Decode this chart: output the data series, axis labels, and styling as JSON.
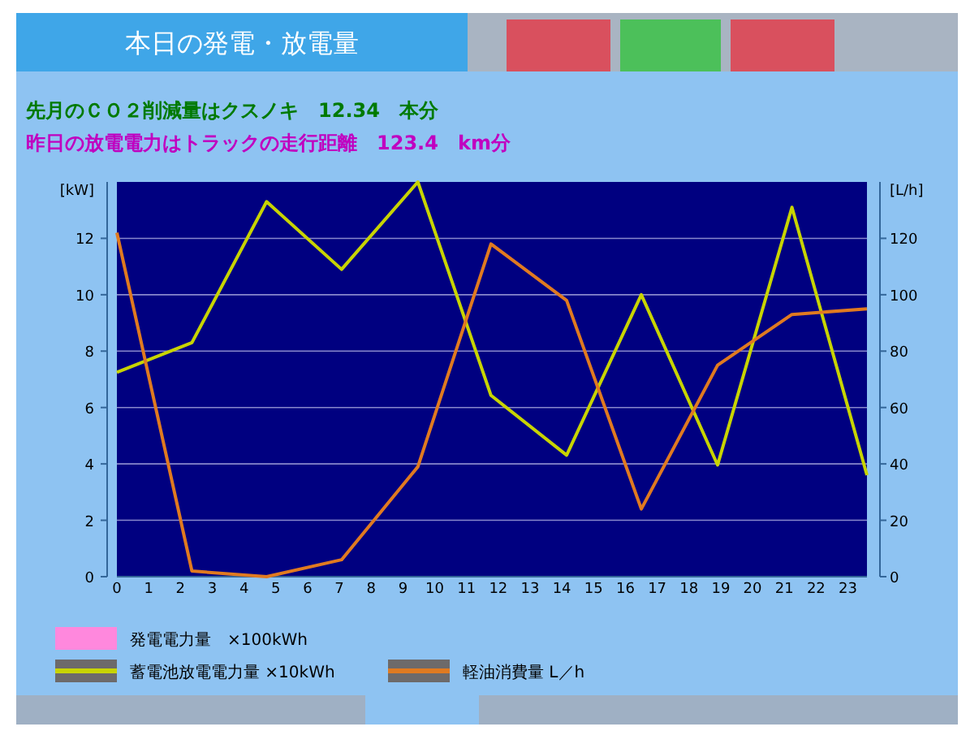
{
  "chart_data": {
    "type": "line",
    "title": "本日の発電・放電量",
    "ylabel": "[kW]",
    "y2label": "[L/h]",
    "annotations": [
      "先月のＣＯ２削減量はクスノキ　12.34　本分",
      "昨日の放電電力はトラックの走行距離　123.4　km分"
    ],
    "x": [
      0,
      2.36,
      4.71,
      7.07,
      9.47,
      11.77,
      14.15,
      16.5,
      18.9,
      21.24,
      23.6
    ],
    "xlim": [
      0,
      23.6
    ],
    "xticks": [
      0,
      1,
      2,
      3,
      4,
      5,
      6,
      7,
      8,
      9,
      10,
      11,
      12,
      13,
      14,
      15,
      16,
      17,
      18,
      19,
      20,
      21,
      22,
      23
    ],
    "ylim": [
      0,
      14
    ],
    "yticks": [
      0,
      2,
      4,
      6,
      8,
      10,
      12
    ],
    "y2lim": [
      0,
      140
    ],
    "y2ticks": [
      0,
      20,
      40,
      60,
      80,
      100,
      120
    ],
    "grid": "y",
    "legend": "bottom left",
    "marker": "none",
    "line_style": "solid",
    "series": [
      {
        "name": "発電電力量　×100kWh",
        "color": "#ff88dd",
        "values": [
          null,
          null,
          null,
          null,
          null,
          null,
          null,
          null,
          null,
          null,
          null
        ]
      },
      {
        "name": "蓄電池放電電力量 ×10kWh",
        "color": "#c8d400",
        "values": [
          7.25,
          8.3,
          13.3,
          10.9,
          14.0,
          6.43,
          4.31,
          10.0,
          3.96,
          13.1,
          3.6
        ]
      },
      {
        "name": "軽油消費量 L／h",
        "color": "#e07a20",
        "axis": "y2",
        "values": [
          122,
          2,
          0,
          6,
          39,
          118,
          98,
          24,
          75,
          93,
          95
        ]
      }
    ]
  }
}
